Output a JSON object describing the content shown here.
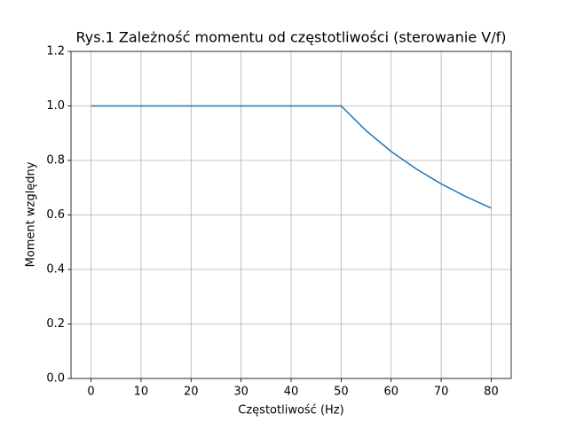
{
  "chart_data": {
    "type": "line",
    "title": "Rys.1 Zależność momentu od częstotliwości (sterowanie V/f)",
    "xlabel": "Częstotliwość (Hz)",
    "ylabel": "Moment względny",
    "x": [
      0,
      10,
      20,
      30,
      40,
      50,
      55,
      60,
      65,
      70,
      75,
      80
    ],
    "series": [
      {
        "name": "Moment względny",
        "color": "#1f77b4",
        "values": [
          1.0,
          1.0,
          1.0,
          1.0,
          1.0,
          1.0,
          0.909,
          0.833,
          0.769,
          0.714,
          0.667,
          0.625
        ]
      }
    ],
    "xlim": [
      -4,
      84
    ],
    "xticks": [
      0,
      10,
      20,
      30,
      40,
      50,
      60,
      70,
      80
    ],
    "ylim": [
      0,
      1.2
    ],
    "yticks": [
      {
        "value": 0,
        "label": "0.0"
      },
      {
        "value": 0.2,
        "label": "0.2"
      },
      {
        "value": 0.4,
        "label": "0.4"
      },
      {
        "value": 0.6,
        "label": "0.6"
      },
      {
        "value": 0.8,
        "label": "0.8"
      },
      {
        "value": 1.0,
        "label": "1.0"
      },
      {
        "value": 1.2,
        "label": "1.2"
      }
    ],
    "grid": true
  }
}
